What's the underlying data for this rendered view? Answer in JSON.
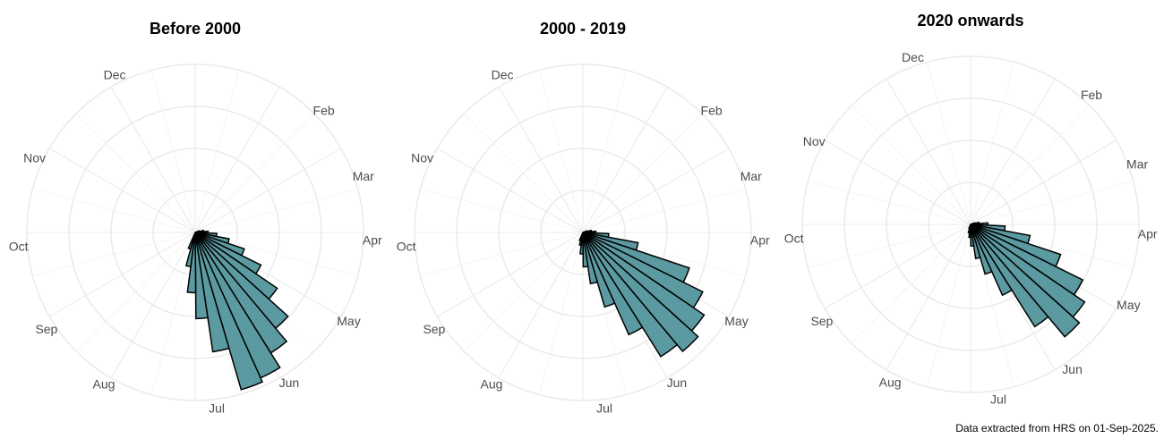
{
  "caption": "Data extracted from HRS on 01-Sep-2025.",
  "chart_data": [
    {
      "type": "polar-histogram",
      "title": "Before 2000",
      "month_labels": [
        "Feb",
        "Mar",
        "Apr",
        "May",
        "Jun",
        "Jul",
        "Aug",
        "Sep",
        "Oct",
        "Nov",
        "Dec"
      ],
      "bar_fill": "#5b9aa0",
      "day_of_year_start": [
        70,
        78,
        86,
        94,
        102,
        110,
        118,
        126,
        134,
        142,
        150,
        158,
        166,
        174,
        182,
        190,
        198
      ],
      "values": [
        0.5,
        1.0,
        1.5,
        2.5,
        4.0,
        6.0,
        8.5,
        11.5,
        14.5,
        16.5,
        18.5,
        19.0,
        14.0,
        10.0,
        7.0,
        4.0,
        2.0
      ],
      "r_max": 19.5,
      "grid": true
    },
    {
      "type": "polar-histogram",
      "title": "2000 - 2019",
      "month_labels": [
        "Feb",
        "Mar",
        "Apr",
        "May",
        "Jun",
        "Jul",
        "Aug",
        "Sep",
        "Oct",
        "Nov",
        "Dec"
      ],
      "bar_fill": "#5b9aa0",
      "day_of_year_start": [
        70,
        78,
        86,
        94,
        102,
        110,
        118,
        126,
        134,
        142,
        150,
        158,
        166,
        174,
        182,
        190,
        198
      ],
      "values": [
        0.5,
        1.0,
        1.5,
        3.0,
        6.5,
        13.0,
        15.5,
        17.0,
        18.0,
        17.0,
        13.0,
        9.0,
        6.0,
        4.0,
        2.5,
        1.5,
        1.0
      ],
      "r_max": 19.5,
      "grid": true
    },
    {
      "type": "polar-histogram",
      "title": "2020 onwards",
      "month_labels": [
        "Dec",
        "Feb",
        "Mar",
        "Apr",
        "May",
        "Jun",
        "Jul",
        "Aug",
        "Sep",
        "Oct",
        "Nov"
      ],
      "bar_fill": "#5b9aa0",
      "day_of_year_start": [
        70,
        78,
        86,
        94,
        102,
        110,
        118,
        126,
        134,
        142,
        150,
        158,
        166,
        174,
        182,
        190,
        198
      ],
      "values": [
        0.5,
        1.0,
        2.0,
        4.0,
        7.0,
        11.0,
        14.5,
        16.0,
        17.0,
        14.0,
        9.0,
        6.0,
        4.0,
        2.5,
        1.5,
        1.0,
        0.5
      ],
      "r_max": 19.5,
      "grid": true
    }
  ]
}
